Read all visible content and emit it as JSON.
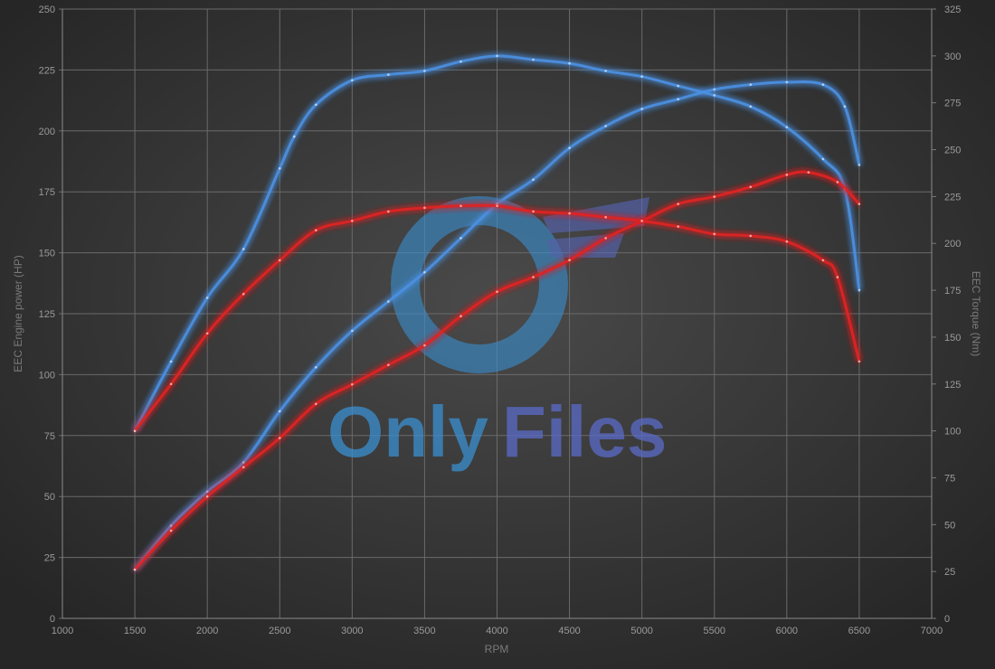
{
  "chart_data": {
    "type": "line",
    "title": "",
    "xlabel": "RPM",
    "ylabel_left": "EEC Engine power (HP)",
    "ylabel_right": "EEC Torque (Nm)",
    "xlim": [
      1000,
      7000
    ],
    "ylim_left": [
      0,
      250
    ],
    "ylim_right": [
      0,
      325
    ],
    "x_ticks": [
      1000,
      1500,
      2000,
      2500,
      3000,
      3500,
      4000,
      4500,
      5000,
      5500,
      6000,
      6500,
      7000
    ],
    "y_ticks_left": [
      0,
      25,
      50,
      75,
      100,
      125,
      150,
      175,
      200,
      225,
      250
    ],
    "y_ticks_right": [
      0,
      25,
      50,
      75,
      100,
      125,
      150,
      175,
      200,
      225,
      250,
      275,
      300,
      325
    ],
    "grid": true,
    "background": "#2e2e2e",
    "series": [
      {
        "axis": "left",
        "color": "#4a90e2",
        "x": [
          1500,
          1750,
          2000,
          2250,
          2500,
          2750,
          3000,
          3250,
          3500,
          3750,
          4000,
          4250,
          4500,
          4750,
          5000,
          5250,
          5500,
          5750,
          6000,
          6250,
          6400,
          6500
        ],
        "values": [
          20,
          38,
          52,
          64,
          85,
          103,
          118,
          130,
          142,
          156,
          170,
          180,
          193,
          202,
          209,
          213,
          217,
          219,
          220,
          219,
          210,
          186
        ]
      },
      {
        "axis": "right",
        "color": "#4a90e2",
        "x": [
          1500,
          1750,
          2000,
          2250,
          2500,
          2600,
          2750,
          3000,
          3250,
          3500,
          3750,
          4000,
          4250,
          4500,
          4750,
          5000,
          5250,
          5500,
          5750,
          6000,
          6250,
          6400,
          6500
        ],
        "values": [
          100,
          137,
          171,
          197,
          240,
          257,
          274,
          287,
          290,
          292,
          297,
          300,
          298,
          296,
          292,
          289,
          284,
          279,
          273,
          262,
          245,
          229,
          175
        ]
      },
      {
        "axis": "left",
        "color": "#e02424",
        "x": [
          1500,
          1750,
          2000,
          2250,
          2500,
          2750,
          3000,
          3250,
          3500,
          3750,
          4000,
          4250,
          4500,
          4750,
          5000,
          5250,
          5500,
          5750,
          6000,
          6150,
          6350,
          6500
        ],
        "values": [
          20,
          36,
          50,
          62,
          74,
          88,
          96,
          104,
          112,
          124,
          134,
          140,
          147,
          156,
          163,
          170,
          173,
          177,
          182,
          183,
          179,
          170
        ]
      },
      {
        "axis": "right",
        "color": "#e02424",
        "x": [
          1500,
          1750,
          2000,
          2250,
          2500,
          2750,
          3000,
          3250,
          3500,
          3750,
          4000,
          4250,
          4500,
          4750,
          5000,
          5250,
          5500,
          5750,
          6000,
          6250,
          6350,
          6500
        ],
        "values": [
          100,
          125,
          152,
          173,
          191,
          207,
          212,
          217,
          219,
          220,
          220,
          217,
          216,
          214,
          212,
          209,
          205,
          204,
          201,
          191,
          182,
          137
        ]
      }
    ]
  },
  "watermark": {
    "text_left": "Only",
    "text_right": "Files"
  }
}
